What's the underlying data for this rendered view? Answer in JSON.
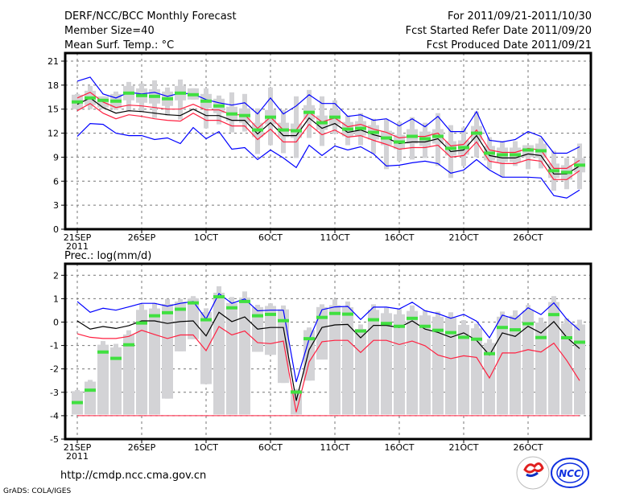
{
  "header": {
    "title": "DERF/NCC/BCC Monthly Forecast",
    "member_size": "Member Size=40",
    "variable_top": "Mean Surf. Temp.: °C",
    "period": "For 2011/09/21-2011/10/30",
    "start_date": "Fcst Started Refer Date 2011/09/20",
    "produced_date": "Fcst Produced Date 2011/09/21"
  },
  "footer": {
    "url": "http://cmdp.ncc.cma.gov.cn",
    "credit": "GrADS: COLA/IGES",
    "logo_bcc": "BCC",
    "logo_ncc": "NCC"
  },
  "colors": {
    "blue": "#0000ff",
    "red": "#ff2040",
    "black": "#000000",
    "green": "#40e040",
    "grey": "#d3d3d6"
  },
  "chart_data": [
    {
      "type": "line",
      "title": "Mean Surf. Temp.: °C",
      "x_tick_labels": [
        "21SEP",
        "26SEP",
        "1OCT",
        "6OCT",
        "11OCT",
        "16OCT",
        "21OCT",
        "26OCT"
      ],
      "x_tick_days": [
        0,
        5,
        10,
        15,
        20,
        25,
        30,
        35
      ],
      "year_label": "2011",
      "y_ticks": [
        0,
        3,
        6,
        9,
        12,
        15,
        18,
        21
      ],
      "ylim": [
        0,
        21
      ],
      "grid": true,
      "days": 40,
      "series": [
        {
          "name": "max",
          "color": "blue",
          "values": [
            18.5,
            19.0,
            16.9,
            16.4,
            17.1,
            16.9,
            17.1,
            16.6,
            17.0,
            16.9,
            16.2,
            15.8,
            15.5,
            15.8,
            14.4,
            16.4,
            14.4,
            15.4,
            16.8,
            15.7,
            15.7,
            14.1,
            14.3,
            13.6,
            13.8,
            12.9,
            13.8,
            12.8,
            14.1,
            12.2,
            12.2,
            14.7,
            11.1,
            10.9,
            11.2,
            12.2,
            11.6,
            9.5,
            9.5,
            10.3
          ]
        },
        {
          "name": "upper",
          "color": "red",
          "values": [
            16.4,
            17.1,
            15.9,
            15.2,
            15.5,
            15.4,
            15.2,
            15.0,
            15.0,
            15.6,
            14.9,
            14.9,
            14.3,
            14.3,
            12.6,
            14.0,
            12.4,
            12.4,
            14.6,
            13.4,
            13.9,
            12.8,
            13.1,
            12.5,
            12.1,
            11.4,
            11.6,
            11.6,
            12.0,
            10.4,
            10.6,
            12.4,
            9.9,
            9.6,
            9.6,
            10.1,
            9.9,
            7.6,
            7.6,
            8.6
          ]
        },
        {
          "name": "mean",
          "color": "black",
          "values": [
            15.6,
            16.4,
            15.2,
            14.5,
            14.8,
            14.7,
            14.5,
            14.3,
            14.2,
            15.0,
            14.2,
            14.2,
            13.6,
            13.6,
            11.9,
            13.3,
            11.7,
            11.7,
            13.9,
            12.6,
            13.2,
            12.1,
            12.4,
            11.8,
            11.4,
            10.7,
            10.9,
            10.9,
            11.3,
            9.7,
            9.9,
            11.7,
            9.2,
            8.9,
            8.9,
            9.4,
            9.2,
            6.9,
            6.9,
            7.9
          ]
        },
        {
          "name": "lower",
          "color": "red",
          "values": [
            14.8,
            15.7,
            14.5,
            13.8,
            14.3,
            14.1,
            13.8,
            13.6,
            13.5,
            14.5,
            13.6,
            13.6,
            12.9,
            12.9,
            11.2,
            12.5,
            10.9,
            10.9,
            13.1,
            11.8,
            12.4,
            11.5,
            11.7,
            11.1,
            10.6,
            10.0,
            10.2,
            10.2,
            10.5,
            9.0,
            9.2,
            10.9,
            8.5,
            8.2,
            8.2,
            8.7,
            8.5,
            6.2,
            6.2,
            7.3
          ]
        },
        {
          "name": "min",
          "color": "blue",
          "values": [
            11.6,
            13.2,
            13.1,
            12.0,
            11.7,
            11.7,
            11.2,
            11.4,
            10.7,
            12.7,
            11.3,
            12.2,
            10.0,
            10.2,
            8.7,
            9.9,
            8.9,
            7.7,
            10.5,
            9.2,
            10.4,
            9.9,
            10.3,
            9.4,
            7.9,
            8.0,
            8.3,
            8.5,
            8.2,
            7.0,
            7.4,
            8.7,
            7.4,
            6.5,
            6.5,
            6.5,
            6.4,
            4.2,
            3.9,
            4.9
          ]
        },
        {
          "name": "observed",
          "color": "green",
          "values": [
            15.9,
            16.4,
            16.1,
            16.0,
            17.0,
            16.7,
            16.6,
            16.3,
            17.0,
            16.8,
            16.0,
            15.4,
            14.4,
            14.2,
            12.4,
            14.0,
            12.4,
            12.3,
            14.6,
            13.3,
            14.0,
            12.5,
            12.6,
            12.1,
            11.4,
            10.9,
            11.6,
            11.3,
            11.6,
            10.1,
            10.2,
            12.0,
            9.5,
            9.3,
            9.3,
            9.9,
            9.8,
            7.3,
            7.1,
            8.0
          ]
        }
      ],
      "ensemble_range": {
        "high": [
          16.9,
          17.9,
          16.6,
          17.2,
          18.4,
          18.2,
          18.6,
          17.7,
          18.7,
          17.6,
          17.6,
          16.7,
          17.1,
          16.9,
          15.1,
          17.7,
          14.9,
          16.6,
          17.4,
          16.6,
          16.1,
          14.2,
          14.5,
          13.8,
          13.7,
          13.4,
          14.0,
          13.3,
          14.5,
          13.0,
          12.7,
          14.7,
          11.5,
          11.0,
          11.0,
          10.5,
          11.4,
          9.8,
          8.9,
          10.7
        ],
        "low": [
          15.0,
          15.0,
          15.0,
          14.9,
          14.7,
          14.6,
          13.9,
          14.2,
          13.7,
          16.2,
          12.6,
          13.1,
          12.1,
          12.2,
          9.4,
          10.5,
          9.5,
          8.9,
          11.4,
          10.4,
          11.9,
          10.5,
          10.5,
          9.4,
          7.5,
          8.5,
          8.7,
          8.9,
          7.9,
          6.4,
          7.9,
          9.0,
          7.5,
          6.5,
          7.9,
          7.5,
          7.6,
          4.8,
          5.0,
          5.0
        ]
      }
    },
    {
      "type": "line",
      "title": "Prec.: log(mm/d)",
      "x_tick_labels": [
        "21SEP",
        "26SEP",
        "1OCT",
        "6OCT",
        "11OCT",
        "16OCT",
        "21OCT",
        "26OCT"
      ],
      "x_tick_days": [
        0,
        5,
        10,
        15,
        20,
        25,
        30,
        35
      ],
      "year_label": "2011",
      "y_ticks": [
        -5,
        -4,
        -3,
        -2,
        -1,
        0,
        1,
        2
      ],
      "ylim": [
        -5,
        2.4
      ],
      "grid": true,
      "days": 40,
      "floor_value": -4,
      "series": [
        {
          "name": "max",
          "color": "blue",
          "values": [
            0.88,
            0.42,
            0.59,
            0.51,
            0.65,
            0.8,
            0.8,
            0.68,
            0.8,
            0.88,
            0.13,
            1.22,
            0.8,
            0.99,
            0.48,
            0.51,
            0.51,
            -2.56,
            -0.73,
            0.53,
            0.65,
            0.67,
            0.11,
            0.64,
            0.64,
            0.56,
            0.85,
            0.48,
            0.36,
            0.16,
            0.33,
            0.04,
            -0.67,
            0.3,
            0.13,
            0.61,
            0.32,
            0.82,
            0.13,
            -0.35
          ]
        },
        {
          "name": "mean",
          "color": "black",
          "values": [
            0.05,
            -0.3,
            -0.19,
            -0.27,
            -0.15,
            0.05,
            0.05,
            -0.06,
            0.02,
            0.05,
            -0.59,
            0.42,
            0.02,
            0.22,
            -0.3,
            -0.23,
            -0.23,
            -3.36,
            -1.18,
            -0.23,
            -0.12,
            -0.1,
            -0.67,
            -0.14,
            -0.14,
            -0.23,
            0.05,
            -0.3,
            -0.44,
            -0.65,
            -0.46,
            -0.78,
            -1.41,
            -0.46,
            -0.61,
            -0.18,
            -0.47,
            0.02,
            -0.65,
            -1.13
          ]
        },
        {
          "name": "lower",
          "color": "red",
          "values": [
            -0.5,
            -0.65,
            -0.7,
            -0.7,
            -0.61,
            -0.35,
            -0.53,
            -0.7,
            -0.55,
            -0.55,
            -1.22,
            -0.19,
            -0.55,
            -0.38,
            -0.88,
            -0.92,
            -0.81,
            -3.85,
            -1.7,
            -0.84,
            -0.78,
            -0.78,
            -1.3,
            -0.78,
            -0.78,
            -0.96,
            -0.81,
            -1.01,
            -1.41,
            -1.56,
            -1.44,
            -1.51,
            -2.39,
            -1.32,
            -1.32,
            -1.18,
            -1.28,
            -0.9,
            -1.64,
            -2.5
          ]
        },
        {
          "name": "observed",
          "color": "green",
          "values": [
            -3.44,
            -2.91,
            -1.28,
            -1.55,
            -0.97,
            -0.04,
            0.27,
            0.4,
            0.55,
            0.82,
            0.1,
            1.08,
            0.61,
            0.88,
            0.27,
            0.33,
            0.06,
            -2.99,
            -0.71,
            0.2,
            0.37,
            0.34,
            -0.38,
            0.1,
            -0.06,
            -0.18,
            0.16,
            -0.18,
            -0.35,
            -0.45,
            -0.65,
            -0.73,
            -1.35,
            -0.23,
            -0.33,
            -0.07,
            -0.66,
            0.32,
            -0.67,
            -0.86
          ]
        }
      ],
      "ensemble_range": {
        "high": [
          -2.9,
          -2.47,
          -0.81,
          -0.93,
          -0.35,
          0.76,
          0.82,
          0.99,
          0.99,
          1.11,
          0.59,
          1.53,
          1.07,
          1.31,
          0.74,
          0.8,
          0.71,
          -2.85,
          -0.23,
          0.76,
          0.97,
          0.88,
          -0.1,
          0.76,
          0.61,
          0.56,
          0.71,
          0.51,
          0.45,
          0.42,
          0.08,
          -0.07,
          -0.73,
          0.45,
          0.5,
          0.73,
          0.19,
          1.11,
          0.16,
          0.1
        ],
        "low": [
          -3.95,
          -3.95,
          -3.95,
          -3.95,
          -3.95,
          -3.95,
          -3.95,
          -3.27,
          -1.25,
          -0.73,
          -2.65,
          -3.95,
          -3.95,
          -3.95,
          -1.27,
          -1.4,
          -2.6,
          -3.95,
          -2.5,
          -1.6,
          -3.95,
          -3.95,
          -3.95,
          -3.95,
          -3.95,
          -3.95,
          -3.95,
          -3.95,
          -3.95,
          -3.95,
          -3.95,
          -3.95,
          -3.95,
          -3.95,
          -3.95,
          -3.95,
          -3.95,
          -3.95,
          -3.95,
          -3.95
        ]
      }
    }
  ]
}
